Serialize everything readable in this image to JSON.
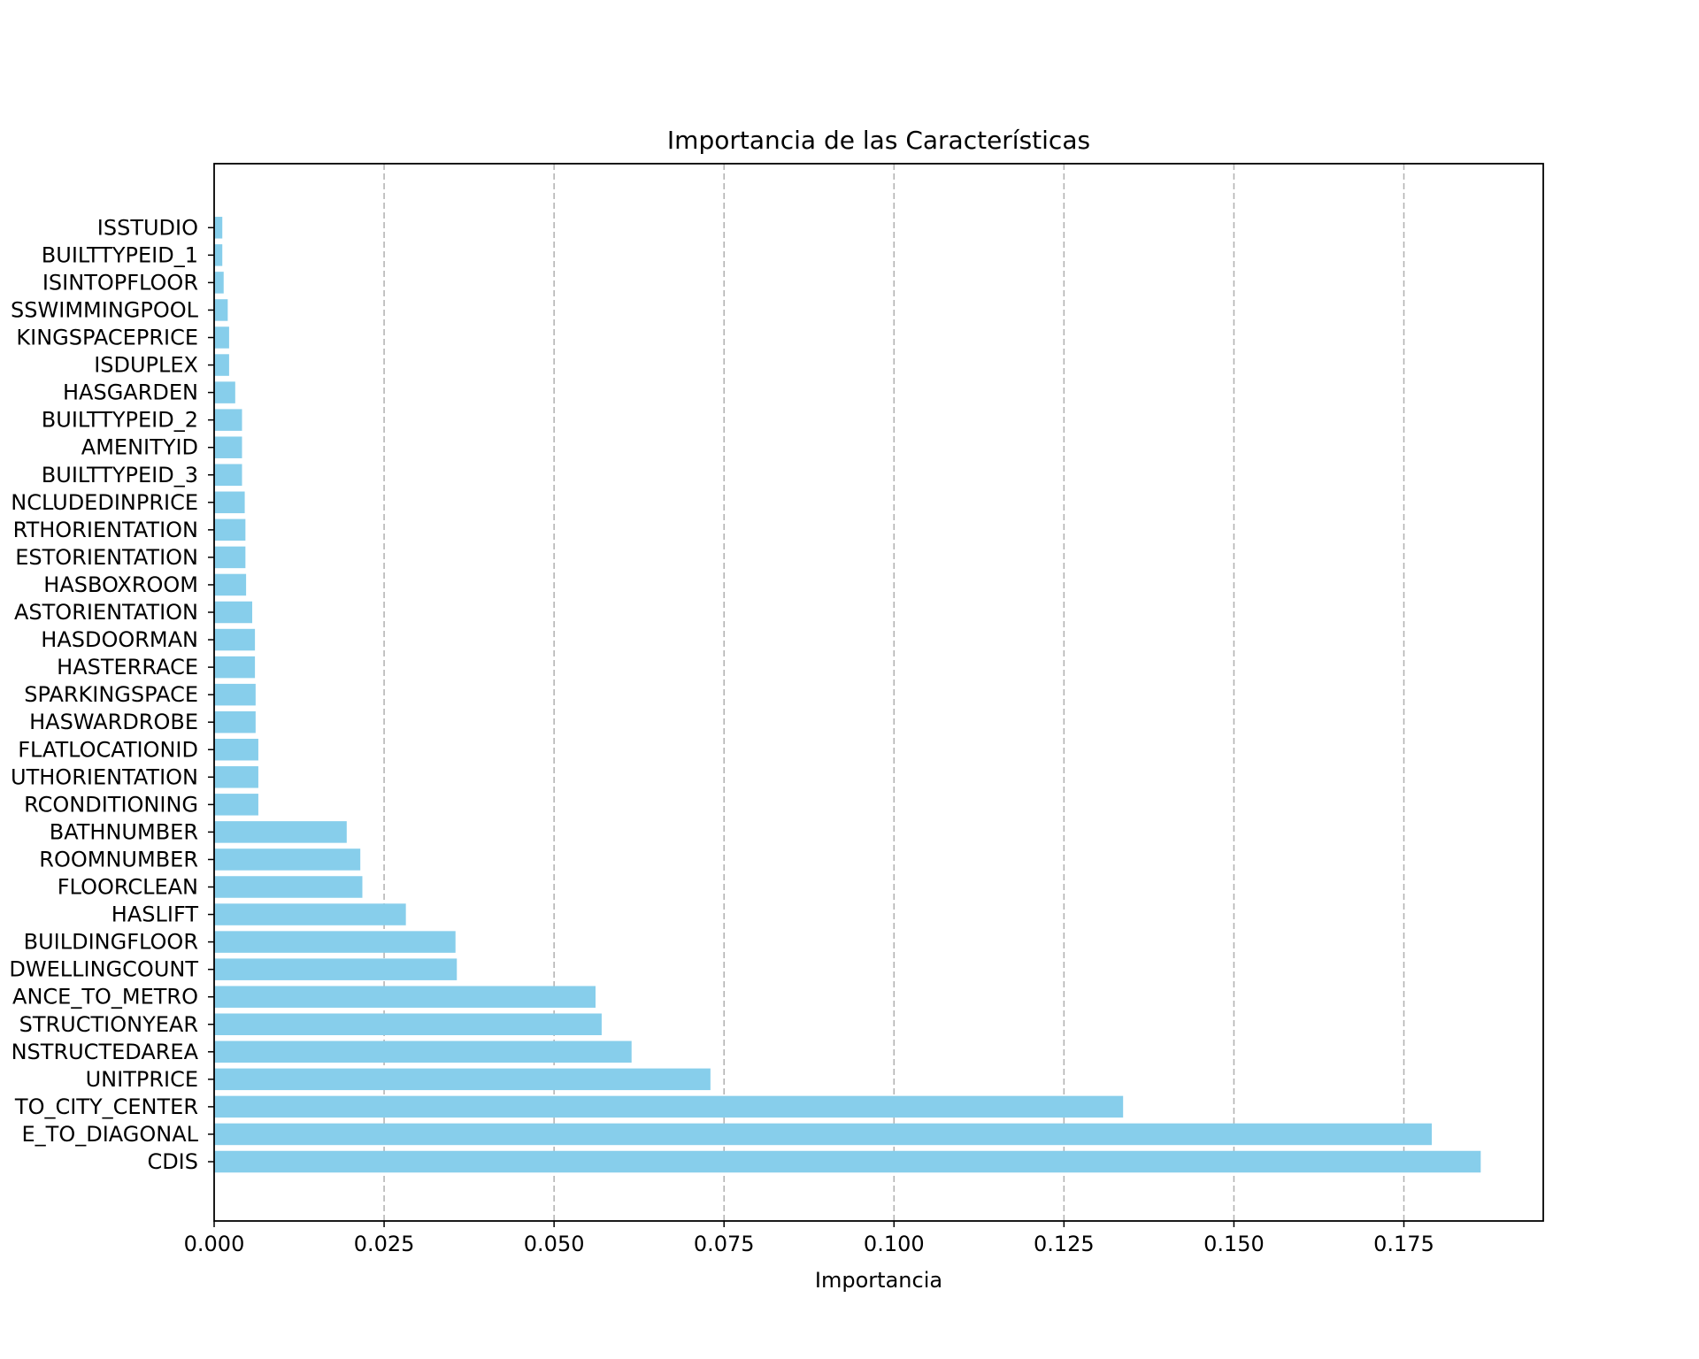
{
  "chart_data": {
    "type": "bar",
    "orientation": "horizontal",
    "title": "Importancia de las Características",
    "xlabel": "Importancia",
    "ylabel": "",
    "xlim": [
      0,
      0.1955
    ],
    "xticks": [
      "0.000",
      "0.025",
      "0.050",
      "0.075",
      "0.100",
      "0.125",
      "0.150",
      "0.175"
    ],
    "xtick_values": [
      0,
      0.025,
      0.05,
      0.075,
      0.1,
      0.125,
      0.15,
      0.175
    ],
    "grid": "x-dashed",
    "bar_color": "#87ceeb",
    "categories": [
      "CDIS",
      "E_TO_DIAGONAL",
      "TO_CITY_CENTER",
      "UNITPRICE",
      "NSTRUCTEDAREA",
      "STRUCTIONYEAR",
      "ANCE_TO_METRO",
      "DWELLINGCOUNT",
      "BUILDINGFLOOR",
      "HASLIFT",
      "FLOORCLEAN",
      "ROOMNUMBER",
      "BATHNUMBER",
      "RCONDITIONING",
      "UTHORIENTATION",
      "FLATLOCATIONID",
      "HASWARDROBE",
      "SPARKINGSPACE",
      "HASTERRACE",
      "HASDOORMAN",
      "ASTORIENTATION",
      "HASBOXROOM",
      "ESTORIENTATION",
      "RTHORIENTATION",
      "NCLUDEDINPRICE",
      "BUILTTYPEID_3",
      "AMENITYID",
      "BUILTTYPEID_2",
      "HASGARDEN",
      "ISDUPLEX",
      "KINGSPACEPRICE",
      "SSWIMMINGPOOL",
      "ISINTOPFLOOR",
      "BUILTTYPEID_1",
      "ISSTUDIO"
    ],
    "values": [
      0.1863,
      0.1791,
      0.1337,
      0.073,
      0.0614,
      0.057,
      0.0561,
      0.0357,
      0.0355,
      0.0282,
      0.0218,
      0.0215,
      0.0195,
      0.0065,
      0.0065,
      0.0065,
      0.0061,
      0.0061,
      0.006,
      0.006,
      0.0056,
      0.0047,
      0.0046,
      0.0046,
      0.0045,
      0.0041,
      0.0041,
      0.0041,
      0.0031,
      0.0022,
      0.0022,
      0.002,
      0.0014,
      0.0012,
      0.0012
    ]
  }
}
